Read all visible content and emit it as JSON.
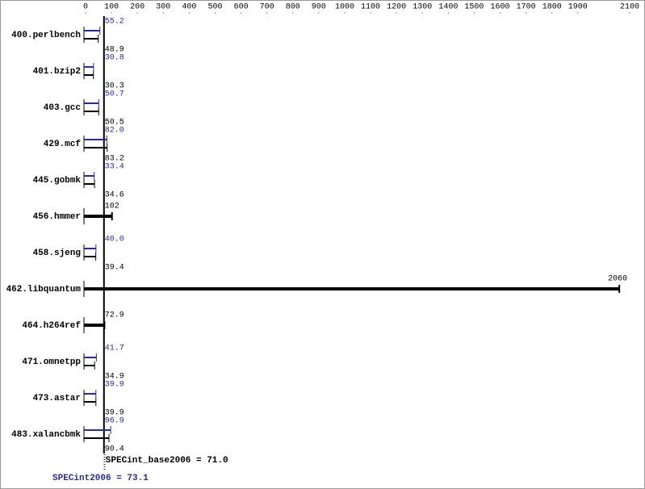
{
  "chart_data": {
    "type": "bar",
    "orientation": "horizontal",
    "categories": [
      "400.perlbench",
      "401.bzip2",
      "403.gcc",
      "429.mcf",
      "445.gobmk",
      "456.hmmer",
      "458.sjeng",
      "462.libquantum",
      "464.h264ref",
      "471.omnetpp",
      "473.astar",
      "483.xalancbmk"
    ],
    "series": [
      {
        "name": "SPECint2006",
        "color": "#2b2b8c",
        "values": [
          55.2,
          30.8,
          50.7,
          82,
          33.4,
          null,
          40,
          null,
          null,
          41.7,
          39.9,
          96.9
        ],
        "value_labels": [
          "55.2",
          "30.8",
          "50.7",
          "82.0",
          "33.4",
          null,
          "40.0",
          null,
          null,
          "41.7",
          "39.9",
          "96.9"
        ]
      },
      {
        "name": "SPECint_base2006",
        "color": "#000000",
        "values": [
          48.9,
          30.3,
          50.5,
          83.2,
          34.6,
          102,
          39.4,
          2060,
          72.9,
          34.9,
          39.9,
          90.4
        ],
        "value_labels": [
          "48.9",
          "30.3",
          "50.5",
          "83.2",
          "34.6",
          "102",
          "39.4",
          "2060",
          "72.9",
          "34.9",
          "39.9",
          "90.4"
        ]
      }
    ],
    "xlim": [
      0,
      2100
    ],
    "xticks": [
      0,
      100,
      200,
      300,
      400,
      500,
      600,
      700,
      800,
      900,
      1000,
      1100,
      1200,
      1300,
      1400,
      1500,
      1600,
      1700,
      1800,
      1900,
      2100
    ],
    "reference_lines": [
      {
        "value": 71,
        "label": "SPECint_base2006 = 71.0",
        "color": "#000000",
        "dashed": false
      },
      {
        "value": 73.1,
        "label": "SPECint2006 = 73.1",
        "color": "#2b2b8c",
        "dashed": true
      }
    ]
  }
}
